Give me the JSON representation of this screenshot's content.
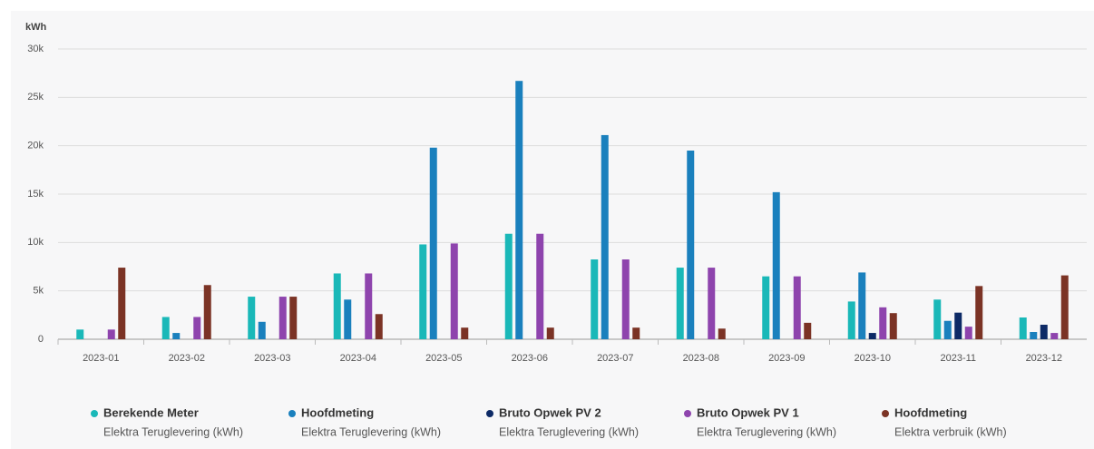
{
  "chart_data": {
    "type": "bar",
    "y_label": "kWh",
    "categories": [
      "2023-01",
      "2023-02",
      "2023-03",
      "2023-04",
      "2023-05",
      "2023-06",
      "2023-07",
      "2023-08",
      "2023-09",
      "2023-10",
      "2023-11",
      "2023-12"
    ],
    "series": [
      {
        "name": "Berekende Meter",
        "description": "Elektra Teruglevering (kWh)",
        "color": "#1ab8b8",
        "values": [
          1000,
          2300,
          4400,
          6800,
          9800,
          10900,
          8250,
          7400,
          6500,
          3900,
          4100,
          2250
        ]
      },
      {
        "name": "Hoofdmeting",
        "description": "Elektra Teruglevering (kWh)",
        "color": "#1a80bd",
        "values": [
          0,
          650,
          1800,
          4100,
          19800,
          26700,
          21100,
          19500,
          15200,
          6900,
          1900,
          750
        ]
      },
      {
        "name": "Bruto Opwek PV 2",
        "description": "Elektra Teruglevering (kWh)",
        "color": "#0d2a66",
        "values": [
          null,
          null,
          null,
          null,
          null,
          null,
          null,
          null,
          null,
          650,
          2750,
          1500
        ]
      },
      {
        "name": "Bruto Opwek PV 1",
        "description": "Elektra Teruglevering (kWh)",
        "color": "#8e44ad",
        "values": [
          1000,
          2300,
          4400,
          6800,
          9900,
          10900,
          8250,
          7400,
          6500,
          3300,
          1300,
          650
        ]
      },
      {
        "name": "Hoofdmeting",
        "description": "Elektra verbruik (kWh)",
        "color": "#7b3325",
        "values": [
          7400,
          5600,
          4400,
          2600,
          1200,
          1200,
          1200,
          1100,
          1700,
          2700,
          5500,
          6600
        ]
      }
    ],
    "ylim": [
      0,
      30000
    ],
    "yticks": [
      0,
      {
        "value": 5000,
        "label": "5k"
      },
      {
        "value": 10000,
        "label": "10k"
      },
      {
        "value": 15000,
        "label": "15k"
      },
      {
        "value": 20000,
        "label": "20k"
      },
      {
        "value": 25000,
        "label": "25k"
      },
      {
        "value": 30000,
        "label": "30k"
      }
    ],
    "grid": true,
    "legend": "bottom"
  }
}
